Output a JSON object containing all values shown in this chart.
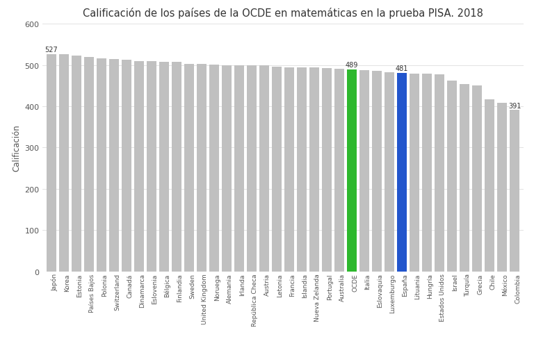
{
  "title": "Calificación de los países de la OCDE en matemáticas en la prueba PISA. 2018",
  "ylabel": "Calificación",
  "categories": [
    "Japón",
    "Korea",
    "Estonia",
    "Países Bajos",
    "Polonia",
    "Switzerland",
    "Canadá",
    "Dinamarca",
    "Eslovenia",
    "Bélgica",
    "Finlandia",
    "Sweden",
    "United Kingdom",
    "Noruega",
    "Alemania",
    "Irlanda",
    "República Checa",
    "Austria",
    "Letonia",
    "Francia",
    "Islandia",
    "Nueva Zelanda",
    "Portugal",
    "Australia",
    "OCDE",
    "Italia",
    "Eslovaquia",
    "Luxemburgo",
    "España",
    "Lituania",
    "Hungría",
    "Estados Unidos",
    "Israel",
    "Turquía",
    "Grecia",
    "Chile",
    "México",
    "Colombia"
  ],
  "values": [
    527,
    526,
    523,
    519,
    516,
    515,
    512,
    509,
    509,
    508,
    507,
    502,
    502,
    501,
    500,
    500,
    499,
    499,
    496,
    495,
    495,
    494,
    492,
    491,
    489,
    487,
    486,
    483,
    481,
    479,
    479,
    478,
    463,
    454,
    451,
    417,
    409,
    391
  ],
  "colors_override": {
    "OCDE": "#2db82d",
    "España": "#2255cc"
  },
  "default_color": "#c0c0c0",
  "annotations": {
    "Japón": "527",
    "OCDE": "489",
    "España": "481",
    "Colombia": "391"
  },
  "ylim": [
    0,
    600
  ],
  "yticks": [
    0,
    100,
    200,
    300,
    400,
    500,
    600
  ],
  "background_color": "#ffffff",
  "plot_bg_color": "#ffffff",
  "title_fontsize": 10.5,
  "bar_width": 0.75
}
